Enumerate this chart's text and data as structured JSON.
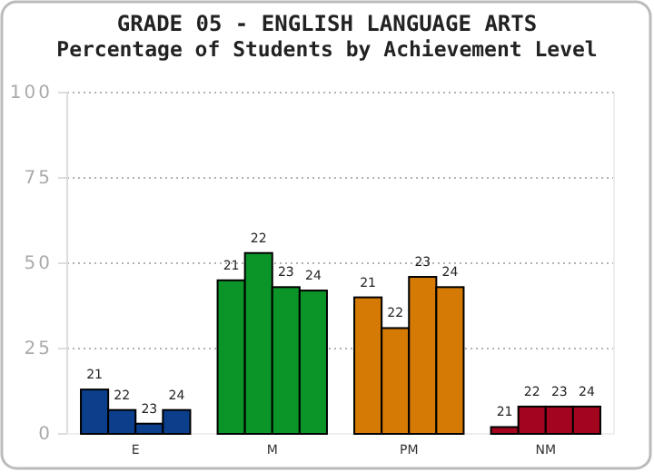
{
  "chart_data": {
    "type": "bar",
    "title": "GRADE 05 - ENGLISH LANGUAGE ARTS",
    "subtitle": "Percentage of Students by Achievement Level",
    "categories": [
      "E",
      "M",
      "PM",
      "NM"
    ],
    "series": [
      {
        "name": "21",
        "colors": [
          "#0b3f8c",
          "#0b9428",
          "#d47a05",
          "#a3051e"
        ],
        "values": [
          13,
          45,
          40,
          2
        ]
      },
      {
        "name": "22",
        "colors": [
          "#0b3f8c",
          "#0b9428",
          "#d47a05",
          "#a3051e"
        ],
        "values": [
          7,
          53,
          31,
          8
        ]
      },
      {
        "name": "23",
        "colors": [
          "#0b3f8c",
          "#0b9428",
          "#d47a05",
          "#a3051e"
        ],
        "values": [
          3,
          43,
          46,
          8
        ]
      },
      {
        "name": "24",
        "colors": [
          "#0b3f8c",
          "#0b9428",
          "#d47a05",
          "#a3051e"
        ],
        "values": [
          7,
          42,
          43,
          8
        ]
      }
    ],
    "ylim": [
      0,
      100
    ],
    "yticks": [
      0,
      25,
      50,
      75,
      100
    ],
    "grid": "y"
  }
}
